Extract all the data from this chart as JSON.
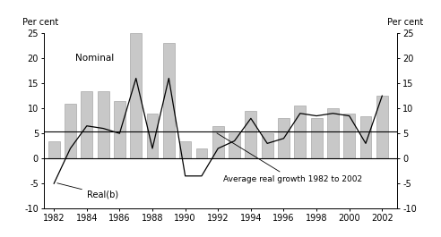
{
  "years": [
    1982,
    1983,
    1984,
    1985,
    1986,
    1987,
    1988,
    1989,
    1990,
    1991,
    1992,
    1993,
    1994,
    1995,
    1996,
    1997,
    1998,
    1999,
    2000,
    2001,
    2002
  ],
  "nominal_bars": [
    3.5,
    11,
    13.5,
    13.5,
    11.5,
    25,
    9,
    23,
    3.5,
    2,
    6.5,
    5,
    9.5,
    5,
    8,
    10.5,
    8,
    10,
    9,
    8.5,
    12.5
  ],
  "real_line": [
    -5,
    2,
    6.5,
    6,
    5,
    16,
    2,
    16,
    -3.5,
    -3.5,
    2,
    3.5,
    8,
    3,
    4,
    9,
    8.5,
    9,
    8.5,
    3,
    12.5
  ],
  "avg_real_growth": 5.3,
  "ylim": [
    -10,
    25
  ],
  "yticks": [
    -10,
    -5,
    0,
    5,
    10,
    15,
    20,
    25
  ],
  "bar_color": "#c8c8c8",
  "line_color": "#000000",
  "ylabel_left": "Per cent",
  "ylabel_right": "Per cent",
  "nominal_label": "Nominal",
  "real_label": "Real(b)",
  "avg_label": "Average real growth 1982 to 2002",
  "xticks": [
    1982,
    1984,
    1986,
    1988,
    1990,
    1992,
    1994,
    1996,
    1998,
    2000,
    2002
  ],
  "xmin": 1981.4,
  "xmax": 2002.9
}
